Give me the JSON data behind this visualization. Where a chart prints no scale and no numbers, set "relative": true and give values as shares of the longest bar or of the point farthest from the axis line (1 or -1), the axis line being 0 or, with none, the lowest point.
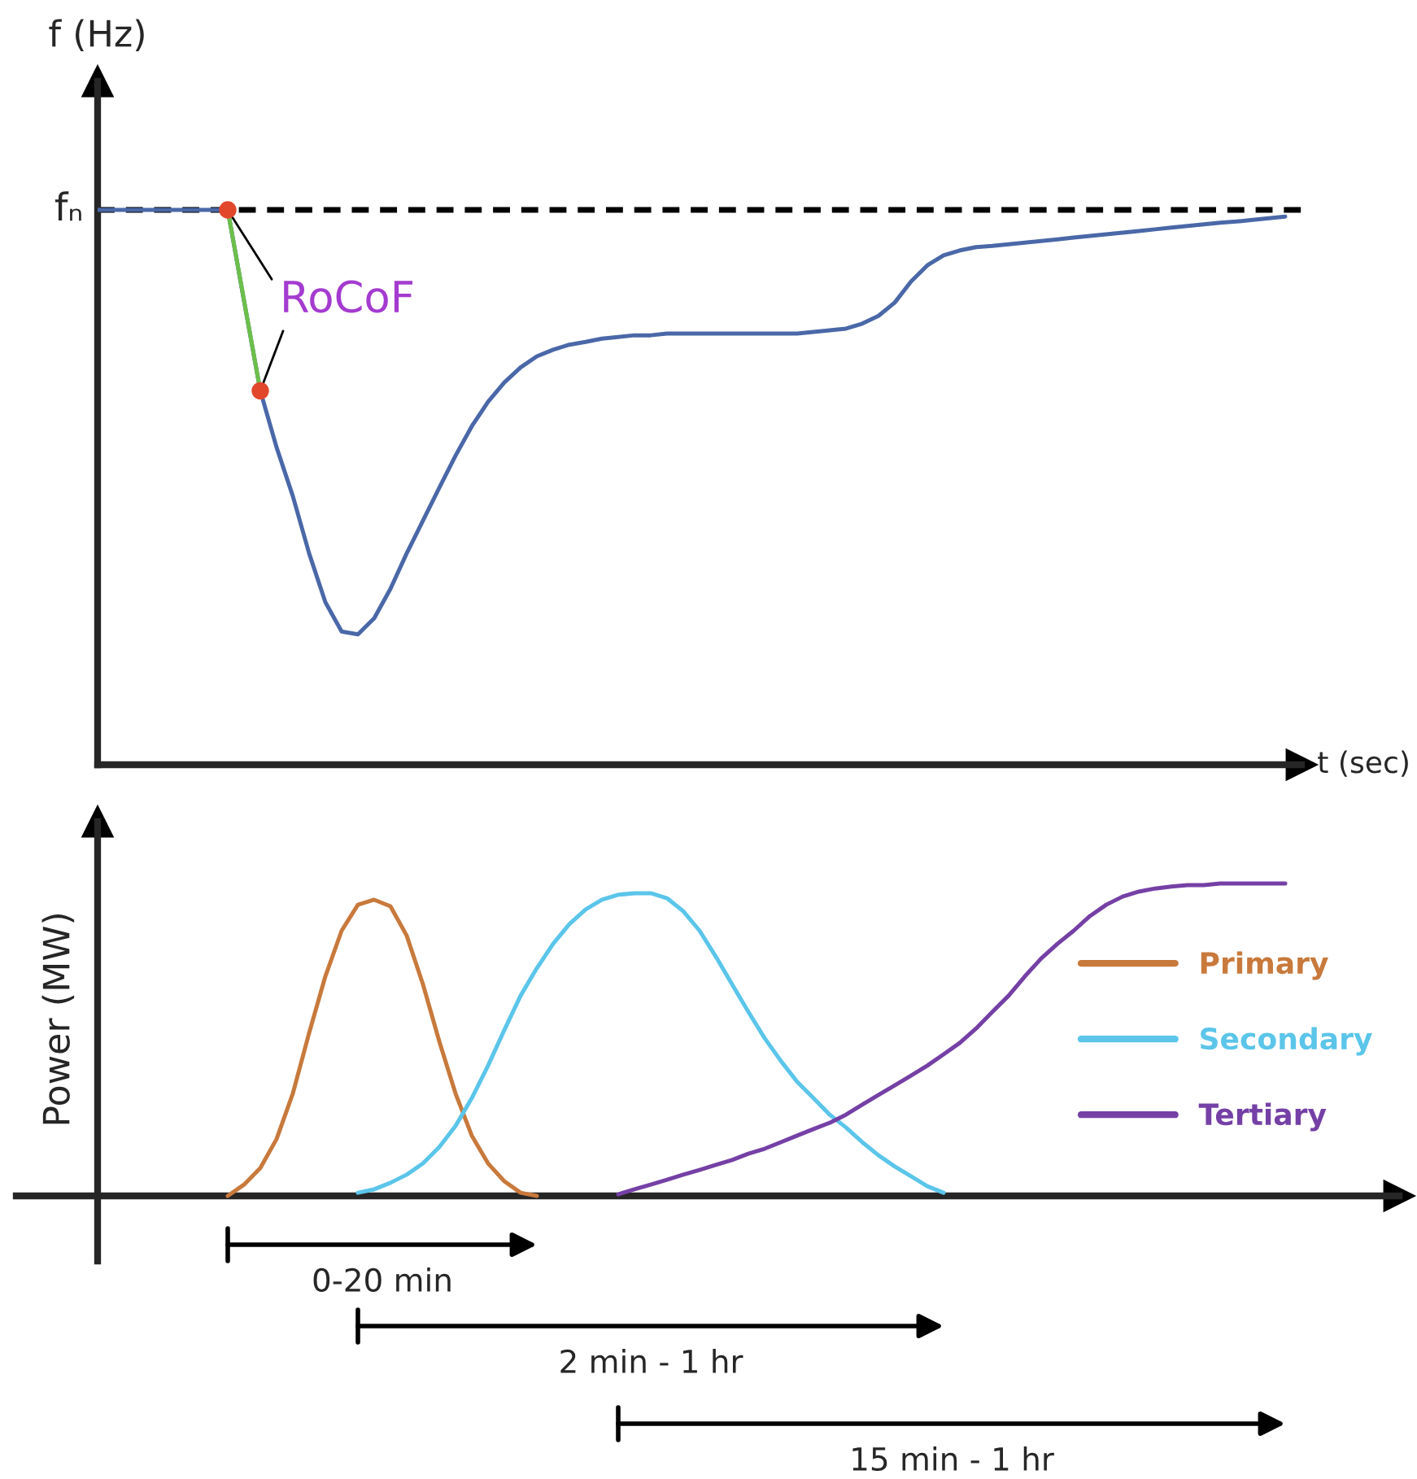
{
  "chart_data": [
    {
      "type": "line",
      "relative": true,
      "ylabel": "f (Hz)",
      "xlabel": "t (sec)",
      "tick_labels": false,
      "legend": false,
      "categories": [
        null,
        null,
        null,
        null,
        null,
        null,
        null,
        null,
        null,
        null,
        null,
        null,
        null,
        null,
        null,
        null,
        null,
        null,
        null,
        null,
        null,
        null,
        null,
        null,
        null,
        null,
        null,
        null,
        null,
        null,
        null,
        null,
        null,
        null,
        null,
        null,
        null,
        null,
        null,
        null,
        null,
        null,
        null,
        null,
        null,
        null,
        null,
        null,
        null,
        null,
        null,
        null,
        null,
        null,
        null,
        null,
        null,
        null,
        null,
        null,
        null,
        null,
        null,
        null,
        null,
        null,
        null,
        null,
        null,
        null,
        null,
        null,
        null,
        null
      ],
      "series": [
        {
          "color": "#4a68a8",
          "values": [
            1.0,
            1.0,
            1.0,
            1.0,
            1.0,
            1.0,
            1.0,
            1.0,
            1.0,
            0.836,
            0.674,
            0.572,
            0.484,
            0.381,
            0.293,
            0.24,
            0.235,
            0.264,
            0.317,
            0.381,
            0.44,
            0.499,
            0.557,
            0.61,
            0.654,
            0.689,
            0.716,
            0.736,
            0.748,
            0.757,
            0.762,
            0.768,
            0.771,
            0.774,
            0.774,
            0.777,
            0.777,
            0.777,
            0.777,
            0.777,
            0.777,
            0.777,
            0.777,
            0.777,
            0.78,
            0.783,
            0.786,
            0.795,
            0.809,
            0.833,
            0.871,
            0.9,
            0.918,
            0.927,
            0.933,
            0.935,
            0.938,
            0.941,
            0.944,
            0.947,
            0.95,
            0.953,
            0.956,
            0.959,
            0.962,
            0.965,
            0.968,
            0.971,
            0.974,
            0.977,
            0.979,
            0.982,
            0.985,
            0.988
          ]
        },
        {
          "color": "#6cbf4a",
          "marker": "circle",
          "values": [
            null,
            null,
            null,
            null,
            null,
            null,
            null,
            null,
            1.0,
            null,
            0.674,
            null,
            null,
            null,
            null,
            null,
            null,
            null,
            null,
            null,
            null,
            null,
            null,
            null,
            null,
            null,
            null,
            null,
            null,
            null,
            null,
            null,
            null,
            null,
            null,
            null,
            null,
            null,
            null,
            null,
            null,
            null,
            null,
            null,
            null,
            null,
            null,
            null,
            null,
            null,
            null,
            null,
            null,
            null,
            null,
            null,
            null,
            null,
            null,
            null,
            null,
            null,
            null,
            null,
            null,
            null,
            null,
            null,
            null,
            null,
            null,
            null,
            null,
            null
          ],
          "colors": [
            null,
            null,
            null,
            null,
            null,
            null,
            null,
            null,
            "#e2472c",
            null,
            "#e2472c",
            null,
            null,
            null,
            null,
            null,
            null,
            null,
            null,
            null,
            null,
            null,
            null,
            null,
            null,
            null,
            null,
            null,
            null,
            null,
            null,
            null,
            null,
            null,
            null,
            null,
            null,
            null,
            null,
            null,
            null,
            null,
            null,
            null,
            null,
            null,
            null,
            null,
            null,
            null,
            null,
            null,
            null,
            null,
            null,
            null,
            null,
            null,
            null,
            null,
            null,
            null,
            null,
            null,
            null,
            null,
            null,
            null,
            null,
            null,
            null,
            null,
            null,
            null
          ]
        }
      ],
      "ref_lines": [
        {
          "axis": "y",
          "value": 1,
          "label": "fₙ",
          "color": "#000000",
          "line_style": "dashed"
        }
      ],
      "annotations": [
        "RoCoF"
      ]
    },
    {
      "type": "line",
      "relative": true,
      "ylabel": "Power (MW)",
      "tick_labels": false,
      "legend": "right",
      "categories": [
        null,
        null,
        null,
        null,
        null,
        null,
        null,
        null,
        null,
        null,
        null,
        null,
        null,
        null,
        null,
        null,
        null,
        null,
        null,
        null,
        null,
        null,
        null,
        null,
        null,
        null,
        null,
        null,
        null,
        null,
        null,
        null,
        null,
        null,
        null,
        null,
        null,
        null,
        null,
        null,
        null,
        null,
        null,
        null,
        null,
        null,
        null,
        null,
        null,
        null,
        null,
        null,
        null,
        null,
        null,
        null,
        null,
        null,
        null,
        null,
        null,
        null,
        null,
        null,
        null,
        null,
        null,
        null,
        null,
        null,
        null,
        null,
        null,
        null
      ],
      "series": [
        {
          "name": "Primary",
          "color": "#c8793c",
          "values": [
            null,
            null,
            null,
            null,
            null,
            null,
            null,
            null,
            0.0,
            0.036,
            0.089,
            0.182,
            0.328,
            0.521,
            0.703,
            0.849,
            0.932,
            0.948,
            0.927,
            0.833,
            0.677,
            0.495,
            0.328,
            0.193,
            0.104,
            0.047,
            0.01,
            0.0,
            null,
            null,
            null,
            null,
            null,
            null,
            null,
            null,
            null,
            null,
            null,
            null,
            null,
            null,
            null,
            null,
            null,
            null,
            null,
            null,
            null,
            null,
            null,
            null,
            null,
            null,
            null,
            null,
            null,
            null,
            null,
            null,
            null,
            null,
            null,
            null,
            null,
            null,
            null,
            null,
            null,
            null,
            null,
            null,
            null,
            null
          ]
        },
        {
          "name": "Secondary",
          "color": "#5bc5ea",
          "values": [
            null,
            null,
            null,
            null,
            null,
            null,
            null,
            null,
            null,
            null,
            null,
            null,
            null,
            null,
            null,
            null,
            0.01,
            0.021,
            0.042,
            0.068,
            0.104,
            0.156,
            0.224,
            0.313,
            0.417,
            0.531,
            0.641,
            0.729,
            0.807,
            0.87,
            0.917,
            0.948,
            0.964,
            0.969,
            0.969,
            0.953,
            0.911,
            0.849,
            0.766,
            0.677,
            0.589,
            0.505,
            0.432,
            0.365,
            0.313,
            0.26,
            0.219,
            0.172,
            0.13,
            0.094,
            0.063,
            0.031,
            0.01,
            null,
            null,
            null,
            null,
            null,
            null,
            null,
            null,
            null,
            null,
            null,
            null,
            null,
            null,
            null,
            null,
            null,
            null,
            null,
            null,
            null
          ]
        },
        {
          "name": "Tertiary",
          "color": "#7540a6",
          "values": [
            null,
            null,
            null,
            null,
            null,
            null,
            null,
            null,
            null,
            null,
            null,
            null,
            null,
            null,
            null,
            null,
            null,
            null,
            null,
            null,
            null,
            null,
            null,
            null,
            null,
            null,
            null,
            null,
            null,
            null,
            null,
            null,
            0.005,
            0.021,
            0.036,
            0.052,
            0.068,
            0.083,
            0.099,
            0.115,
            0.135,
            0.151,
            0.172,
            0.193,
            0.214,
            0.234,
            0.26,
            0.292,
            0.323,
            0.354,
            0.385,
            0.417,
            0.453,
            0.49,
            0.536,
            0.589,
            0.641,
            0.703,
            0.76,
            0.807,
            0.849,
            0.896,
            0.932,
            0.958,
            0.974,
            0.984,
            0.99,
            0.995,
            0.995,
            1.0,
            1.0,
            1.0,
            1.0,
            1.0
          ]
        }
      ],
      "annotations": [
        "0-20 min",
        "2 min - 1 hr",
        "15 min - 1 hr"
      ]
    }
  ]
}
